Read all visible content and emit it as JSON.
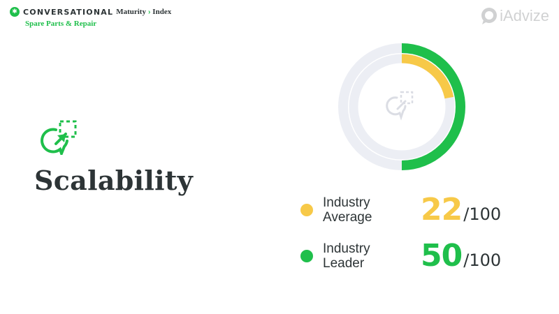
{
  "header": {
    "badge_glyph": "✱",
    "brand_word": "CONVERSATIONAL",
    "brand_maturity": "Maturity",
    "brand_separator": "›",
    "brand_index": "Index",
    "subtitle": "Spare Parts & Repair"
  },
  "logo": {
    "text": "iAdvize",
    "icon": "iadvize-bubble-icon"
  },
  "section": {
    "title": "Scalability",
    "icon": "chat-expand-icon"
  },
  "metrics": [
    {
      "label_line1": "Industry",
      "label_line2": "Average",
      "value": "22",
      "max": "/100",
      "score": 22,
      "color": "#f7c948"
    },
    {
      "label_line1": "Industry",
      "label_line2": "Leader",
      "value": "50",
      "max": "/100",
      "score": 50,
      "color": "#1fbf4b"
    }
  ],
  "colors": {
    "green": "#1fbf4b",
    "yellow": "#f7c948",
    "track": "#eceef4",
    "text": "#2d3436"
  }
}
